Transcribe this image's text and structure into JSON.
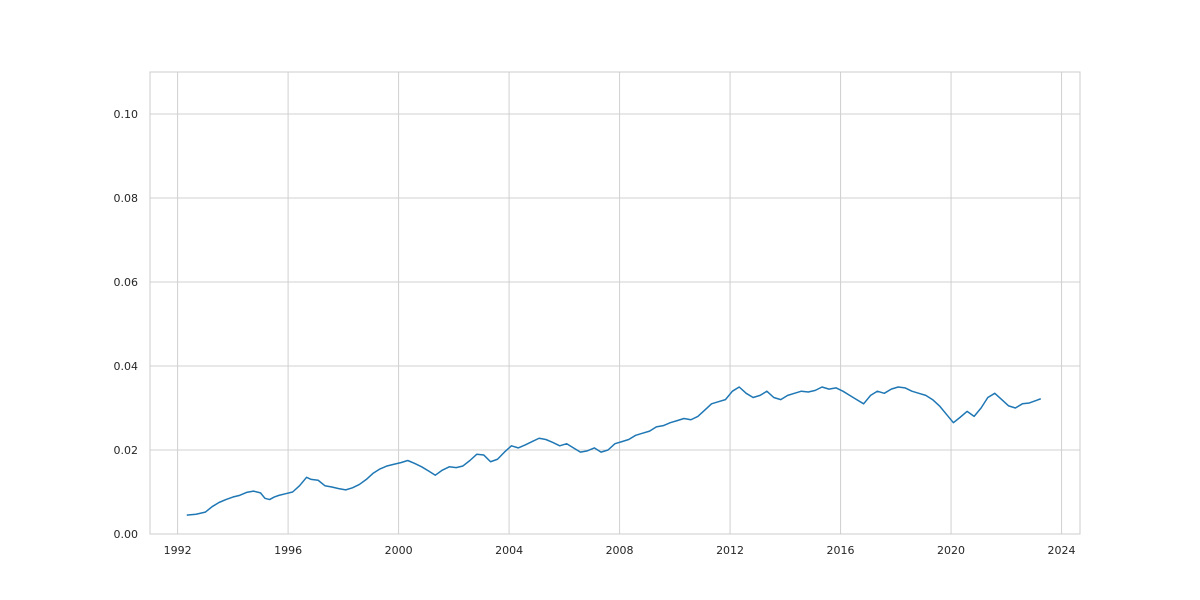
{
  "chart_data": {
    "type": "line",
    "title": "",
    "xlabel": "",
    "ylabel": "",
    "xlim": [
      "1991-01-01",
      "2024-09-01"
    ],
    "ylim": [
      0,
      0.11
    ],
    "xticks": [
      "1992",
      "1996",
      "2000",
      "2004",
      "2008",
      "2012",
      "2016",
      "2020",
      "2024"
    ],
    "yticks": [
      "0.00",
      "0.02",
      "0.04",
      "0.06",
      "0.08",
      "0.10"
    ],
    "grid": true,
    "legend": "none",
    "colors": {
      "series": "#1f77b4",
      "grid": "#d0d0d0",
      "axes_frame": "#cccccc",
      "text": "#262626"
    },
    "series": [
      {
        "x": [
          "1992-05-01",
          "1992-09-01",
          "1993-01-01",
          "1993-04-01",
          "1993-07-01",
          "1993-10-01",
          "1994-01-01",
          "1994-04-01",
          "1994-07-01",
          "1994-10-01",
          "1995-01-01",
          "1995-03-01",
          "1995-05-01",
          "1995-07-01",
          "1995-09-01",
          "1995-12-01",
          "1996-03-01",
          "1996-06-01",
          "1996-09-01",
          "1996-11-01",
          "1997-02-01",
          "1997-05-01",
          "1997-08-01",
          "1997-11-01",
          "1998-02-01",
          "1998-05-01",
          "1998-08-01",
          "1998-11-01",
          "1999-02-01",
          "1999-05-01",
          "1999-08-01",
          "1999-11-01",
          "2000-02-01",
          "2000-05-01",
          "2000-08-01",
          "2000-11-01",
          "2001-02-01",
          "2001-05-01",
          "2001-08-01",
          "2001-11-01",
          "2002-02-01",
          "2002-05-01",
          "2002-08-01",
          "2002-11-01",
          "2003-02-01",
          "2003-05-01",
          "2003-08-01",
          "2003-11-01",
          "2004-02-01",
          "2004-05-01",
          "2004-08-01",
          "2004-11-01",
          "2005-02-01",
          "2005-05-01",
          "2005-08-01",
          "2005-11-01",
          "2006-02-01",
          "2006-05-01",
          "2006-08-01",
          "2006-11-01",
          "2007-02-01",
          "2007-05-01",
          "2007-08-01",
          "2007-11-01",
          "2008-02-01",
          "2008-05-01",
          "2008-08-01",
          "2008-11-01",
          "2009-02-01",
          "2009-05-01",
          "2009-08-01",
          "2009-11-01",
          "2010-02-01",
          "2010-05-01",
          "2010-08-01",
          "2010-11-01",
          "2011-02-01",
          "2011-05-01",
          "2011-08-01",
          "2011-11-01",
          "2012-02-01",
          "2012-05-01",
          "2012-08-01",
          "2012-11-01",
          "2013-02-01",
          "2013-05-01",
          "2013-08-01",
          "2013-11-01",
          "2014-02-01",
          "2014-05-01",
          "2014-08-01",
          "2014-11-01",
          "2015-02-01",
          "2015-05-01",
          "2015-08-01",
          "2015-11-01",
          "2016-02-01",
          "2016-05-01",
          "2016-08-01",
          "2016-11-01",
          "2017-02-01",
          "2017-05-01",
          "2017-08-01",
          "2017-11-01",
          "2018-02-01",
          "2018-05-01",
          "2018-08-01",
          "2018-11-01",
          "2019-02-01",
          "2019-05-01",
          "2019-08-01",
          "2019-11-01",
          "2020-02-01",
          "2020-05-01",
          "2020-08-01",
          "2020-11-01",
          "2021-02-01",
          "2021-05-01",
          "2021-08-01",
          "2021-11-01",
          "2022-02-01",
          "2022-05-01",
          "2022-08-01",
          "2022-11-01",
          "2023-02-01",
          "2023-04-01"
        ],
        "values": [
          0.0045,
          0.0047,
          0.0052,
          0.0065,
          0.0075,
          0.0082,
          0.0088,
          0.0092,
          0.0099,
          0.0102,
          0.0098,
          0.0085,
          0.0082,
          0.0088,
          0.0092,
          0.0096,
          0.01,
          0.0115,
          0.0135,
          0.013,
          0.0128,
          0.0115,
          0.0112,
          0.0108,
          0.0105,
          0.011,
          0.0118,
          0.013,
          0.0145,
          0.0155,
          0.0162,
          0.0166,
          0.017,
          0.0175,
          0.0168,
          0.016,
          0.015,
          0.014,
          0.0152,
          0.016,
          0.0158,
          0.0162,
          0.0175,
          0.019,
          0.0188,
          0.0172,
          0.0178,
          0.0195,
          0.021,
          0.0205,
          0.0212,
          0.022,
          0.0228,
          0.0225,
          0.0218,
          0.021,
          0.0215,
          0.0205,
          0.0195,
          0.0198,
          0.0205,
          0.0195,
          0.02,
          0.0215,
          0.022,
          0.0225,
          0.0235,
          0.024,
          0.0245,
          0.0255,
          0.0258,
          0.0265,
          0.027,
          0.0275,
          0.0272,
          0.028,
          0.0295,
          0.031,
          0.0315,
          0.032,
          0.034,
          0.035,
          0.0335,
          0.0325,
          0.033,
          0.034,
          0.0325,
          0.032,
          0.033,
          0.0335,
          0.034,
          0.0338,
          0.0342,
          0.035,
          0.0345,
          0.0348,
          0.034,
          0.033,
          0.032,
          0.031,
          0.033,
          0.034,
          0.0335,
          0.0345,
          0.035,
          0.0348,
          0.034,
          0.0335,
          0.033,
          0.032,
          0.0305,
          0.0285,
          0.0265,
          0.0278,
          0.0292,
          0.028,
          0.03,
          0.0325,
          0.0335,
          0.032,
          0.0305,
          0.03,
          0.031,
          0.0312,
          0.0318,
          0.0322
        ]
      }
    ]
  }
}
